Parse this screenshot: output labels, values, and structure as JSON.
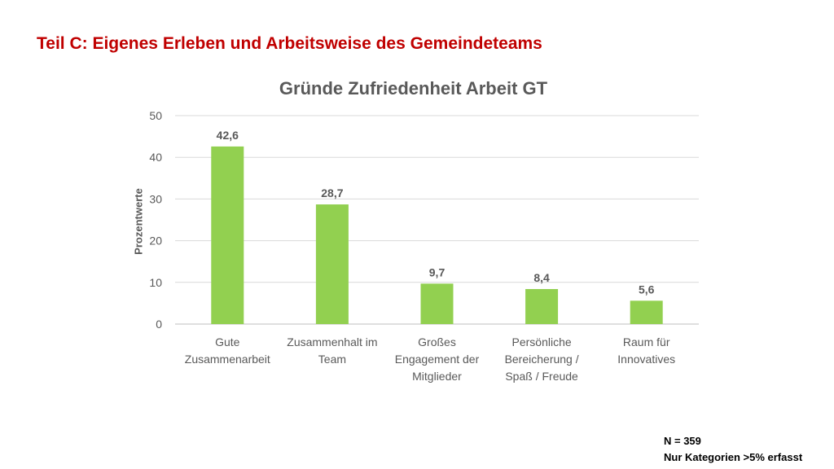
{
  "slide": {
    "title": "Teil C: Eigenes Erleben und Arbeitsweise des Gemeindeteams"
  },
  "chart_data": {
    "type": "bar",
    "title": "Gründe Zufriedenheit Arbeit GT",
    "xlabel": "",
    "ylabel": "Prozentwerte",
    "ylim": [
      0,
      50
    ],
    "yticks": [
      0,
      10,
      20,
      30,
      40,
      50
    ],
    "grid": true,
    "categories": [
      [
        "Gute",
        "Zusammenarbeit"
      ],
      [
        "Zusammenhalt im",
        "Team"
      ],
      [
        "Großes",
        "Engagement der",
        "Mitglieder"
      ],
      [
        "Persönliche",
        "Bereicherung /",
        "Spaß / Freude"
      ],
      [
        "Raum für",
        "Innovatives"
      ]
    ],
    "values": [
      42.6,
      28.7,
      9.7,
      8.4,
      5.6
    ],
    "data_labels": [
      "42,6",
      "28,7",
      "9,7",
      "8,4",
      "5,6"
    ],
    "bar_color": "#92d050"
  },
  "footnote": {
    "line1": "N = 359",
    "line2": "Nur Kategorien >5% erfasst"
  },
  "colors": {
    "title": "#c00000",
    "bars": "#92d050",
    "axis_text": "#595959",
    "gridline": "#d9d9d9"
  }
}
